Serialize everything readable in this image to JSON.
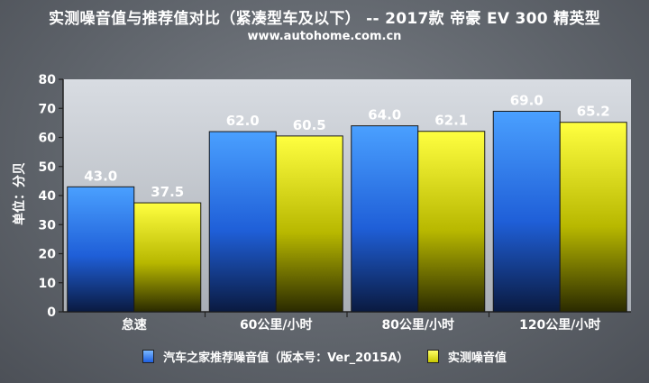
{
  "title": "实测噪音值与推荐值对比（紧凑型车及以下） -- 2017款 帝豪 EV 300 精英型",
  "subtitle": "www.autohome.com.cn",
  "chart_data": {
    "type": "bar",
    "categories": [
      "怠速",
      "60公里/小时",
      "80公里/小时",
      "120公里/小时"
    ],
    "series": [
      {
        "name": "汽车之家推荐噪音值（版本号：Ver_2015A）",
        "values": [
          43.0,
          62.0,
          64.0,
          69.0
        ],
        "color": "#3d8cf5"
      },
      {
        "name": "实测噪音值",
        "values": [
          37.5,
          60.5,
          62.1,
          65.2
        ],
        "color": "#f0f000"
      }
    ],
    "ylabel": "单位：分贝",
    "ylim": [
      0,
      80
    ],
    "yticks": [
      0,
      10,
      20,
      30,
      40,
      50,
      60,
      70,
      80
    ],
    "grid": false,
    "legend": "bottom"
  }
}
